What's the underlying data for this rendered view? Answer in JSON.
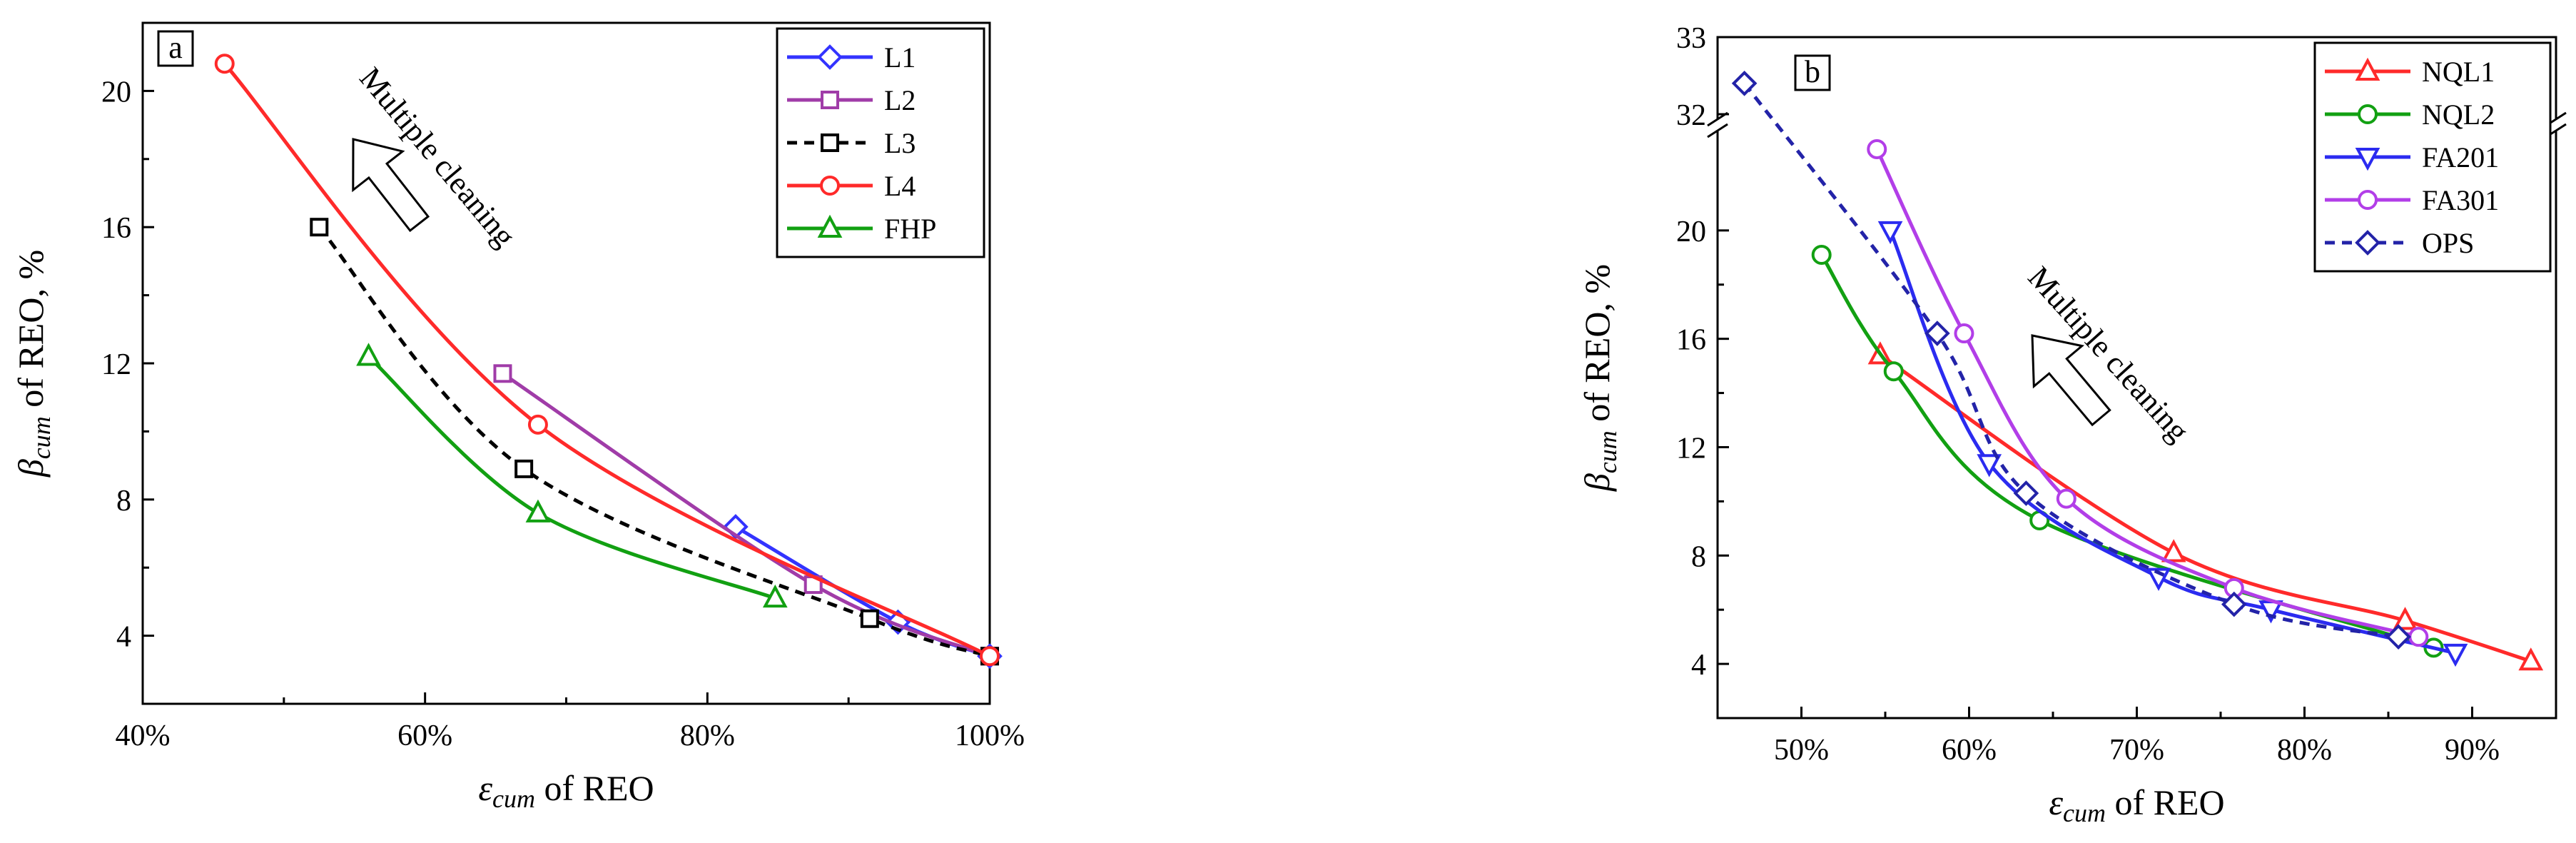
{
  "chart_data": [
    {
      "type": "line",
      "panel_label": "a",
      "xlabel": {
        "sym": "ε",
        "sub": "cum",
        "rest": " of REO"
      },
      "ylabel": {
        "sym": "β",
        "sub": "cum",
        "rest": " of REO, %"
      },
      "xlim": [
        40,
        100
      ],
      "ylim": [
        2,
        22
      ],
      "xticks": [
        40,
        60,
        80,
        100
      ],
      "xtick_labels": [
        "40%",
        "60%",
        "80%",
        "100%"
      ],
      "yticks": [
        4,
        8,
        12,
        16,
        20
      ],
      "ytick_labels": [
        "4",
        "8",
        "12",
        "16",
        "20"
      ],
      "grid": false,
      "legend_position": "top-right",
      "annotation": "Multiple cleaning",
      "series": [
        {
          "name": "L1",
          "color": "#3333ff",
          "marker": "diamond",
          "dash": "solid",
          "x": [
            82,
            93.5,
            100
          ],
          "y": [
            7.2,
            4.4,
            3.4
          ]
        },
        {
          "name": "L2",
          "color": "#a03ca8",
          "marker": "square",
          "dash": "solid",
          "x": [
            65.5,
            87.5,
            100
          ],
          "y": [
            11.7,
            5.5,
            3.4
          ]
        },
        {
          "name": "L3",
          "color": "#000000",
          "marker": "square",
          "dash": "dashed",
          "x": [
            52.5,
            67,
            91.5,
            100
          ],
          "y": [
            16.0,
            8.9,
            4.5,
            3.4
          ]
        },
        {
          "name": "L4",
          "color": "#ff2a2a",
          "marker": "circle",
          "dash": "solid",
          "x": [
            45.8,
            68,
            100
          ],
          "y": [
            20.8,
            10.2,
            3.4
          ]
        },
        {
          "name": "FHP",
          "color": "#12a012",
          "marker": "triangle-up",
          "dash": "solid",
          "x": [
            56,
            68,
            84.8
          ],
          "y": [
            12.2,
            7.6,
            5.1
          ]
        }
      ]
    },
    {
      "type": "line",
      "panel_label": "b",
      "xlabel": {
        "sym": "ε",
        "sub": "cum",
        "rest": " of REO"
      },
      "ylabel": {
        "sym": "β",
        "sub": "cum",
        "rest": " of REO, %"
      },
      "xlim": [
        45,
        95
      ],
      "ylim": [
        2,
        33
      ],
      "axis_break": {
        "lower_max": 23.5,
        "upper_range": [
          32,
          33
        ]
      },
      "xticks": [
        50,
        60,
        70,
        80,
        90
      ],
      "xtick_labels": [
        "50%",
        "60%",
        "70%",
        "80%",
        "90%"
      ],
      "yticks": [
        4,
        8,
        12,
        16,
        20,
        32,
        33
      ],
      "ytick_labels": [
        "4",
        "8",
        "12",
        "16",
        "20",
        "32",
        "33"
      ],
      "grid": false,
      "legend_position": "top-right",
      "annotation": "Multiple cleaning",
      "series": [
        {
          "name": "NQL1",
          "color": "#ff2a2a",
          "marker": "triangle-up",
          "dash": "solid",
          "x": [
            54.7,
            72.2,
            86,
            93.5
          ],
          "y": [
            15.4,
            8.1,
            5.6,
            4.1
          ]
        },
        {
          "name": "NQL2",
          "color": "#12a012",
          "marker": "circle",
          "dash": "solid",
          "x": [
            51.2,
            55.5,
            64.2,
            87.7
          ],
          "y": [
            19.1,
            14.8,
            9.3,
            4.6
          ]
        },
        {
          "name": "FA201",
          "color": "#2b2bf0",
          "marker": "triangle-down",
          "dash": "solid",
          "x": [
            55.3,
            61.2,
            71.3,
            78,
            89
          ],
          "y": [
            20.0,
            11.4,
            7.2,
            6.0,
            4.4
          ]
        },
        {
          "name": "FA301",
          "color": "#b23ee8",
          "marker": "circle",
          "dash": "solid",
          "x": [
            54.5,
            59.7,
            65.8,
            75.8,
            86.8
          ],
          "y": [
            23.0,
            16.2,
            10.1,
            6.8,
            5.0
          ]
        },
        {
          "name": "OPS",
          "color": "#2323a8",
          "marker": "diamond",
          "dash": "dashed",
          "x": [
            46.6,
            58.1,
            63.4,
            75.8,
            85.6
          ],
          "y": [
            32.4,
            16.2,
            10.3,
            6.2,
            5.0
          ]
        }
      ]
    }
  ]
}
